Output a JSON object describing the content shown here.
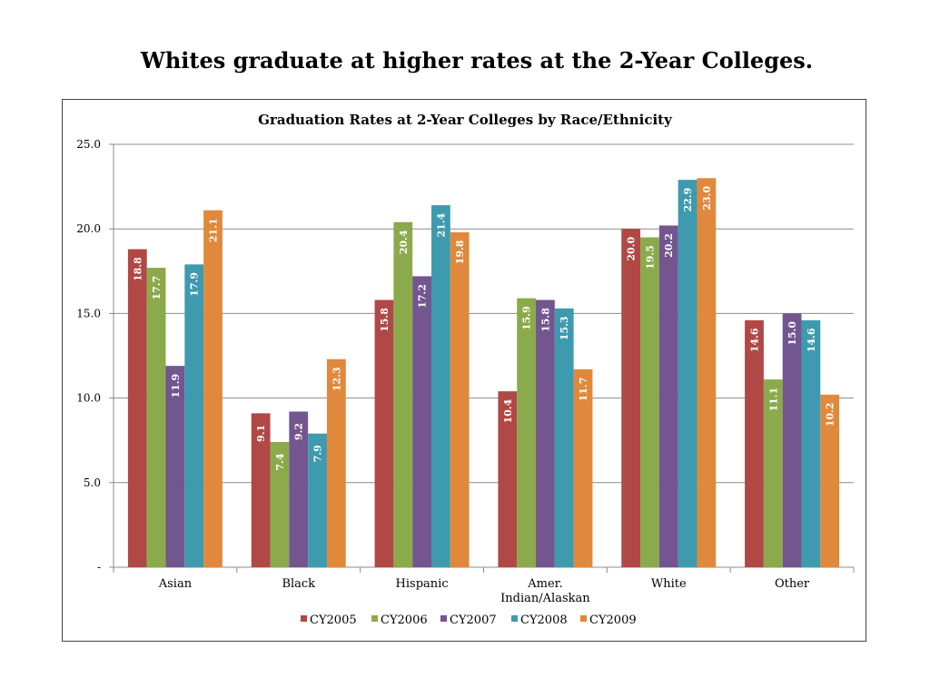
{
  "slide": {
    "title": "Whites graduate at higher rates at the 2-Year Colleges."
  },
  "chart_data": {
    "type": "bar",
    "title": "Graduation Rates at 2-Year Colleges by Race/Ethnicity",
    "xlabel": "",
    "ylabel": "",
    "ylim": [
      0,
      25
    ],
    "yticks": [
      {
        "value": 0,
        "label": "-"
      },
      {
        "value": 5,
        "label": "5.0"
      },
      {
        "value": 10,
        "label": "10.0"
      },
      {
        "value": 15,
        "label": "15.0"
      },
      {
        "value": 20,
        "label": "20.0"
      },
      {
        "value": 25,
        "label": "25.0"
      }
    ],
    "grid": true,
    "legend_position": "bottom",
    "categories": [
      [
        "Asian"
      ],
      [
        "Black"
      ],
      [
        "Hispanic"
      ],
      [
        "Amer.",
        "Indian/Alaskan"
      ],
      [
        "White"
      ],
      [
        "Other"
      ]
    ],
    "series": [
      {
        "name": "CY2005",
        "color": "#B04846",
        "values": [
          18.8,
          9.1,
          15.8,
          10.4,
          20.0,
          14.6
        ],
        "labels": [
          "18.8",
          "9.1",
          "15.8",
          "10.4",
          "20.0",
          "14.6"
        ]
      },
      {
        "name": "CY2006",
        "color": "#8BAA4B",
        "values": [
          17.7,
          7.4,
          20.4,
          15.9,
          19.5,
          11.1
        ],
        "labels": [
          "17.7",
          "7.4",
          "20.4",
          "15.9",
          "19.5",
          "11.1"
        ]
      },
      {
        "name": "CY2007",
        "color": "#73558F",
        "values": [
          11.9,
          9.2,
          17.2,
          15.8,
          20.2,
          15.0
        ],
        "labels": [
          "11.9",
          "9.2",
          "17.2",
          "15.8",
          "20.2",
          "15.0"
        ]
      },
      {
        "name": "CY2008",
        "color": "#3E9AAF",
        "values": [
          17.9,
          7.9,
          21.4,
          15.3,
          22.9,
          14.6
        ],
        "labels": [
          "17.9",
          "7.9",
          "21.4",
          "15.3",
          "22.9",
          "14.6"
        ]
      },
      {
        "name": "CY2009",
        "color": "#E0893C",
        "values": [
          21.1,
          12.3,
          19.8,
          11.7,
          23.0,
          10.2
        ],
        "labels": [
          "21.1",
          "12.3",
          "19.8",
          "11.7",
          "23.0",
          "10.2"
        ]
      }
    ]
  }
}
